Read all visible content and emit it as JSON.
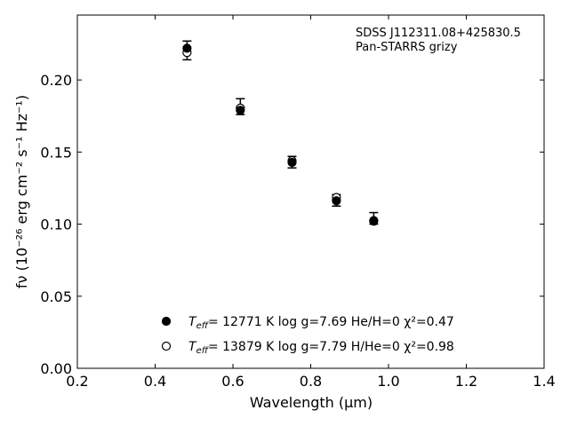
{
  "chart_data": {
    "type": "scatter",
    "title": "",
    "xlabel": "Wavelength (μm)",
    "ylabel": "fν (10⁻²⁶ erg cm⁻² s⁻¹ Hz⁻¹)",
    "xlim": [
      0.2,
      1.4
    ],
    "ylim": [
      0.0,
      0.245
    ],
    "xticks": [
      "0.2",
      "0.4",
      "0.6",
      "0.8",
      "1.0",
      "1.2",
      "1.4"
    ],
    "yticks": [
      "0.00",
      "0.05",
      "0.10",
      "0.15",
      "0.20"
    ],
    "grid": false,
    "annotation": [
      "SDSS J112311.08+425830.5",
      "Pan-STARRS grizy"
    ],
    "observed": {
      "x": [
        0.482,
        0.619,
        0.752,
        0.866,
        0.962
      ],
      "y": [
        0.2205,
        0.1815,
        0.143,
        0.1165,
        0.104
      ],
      "yerr_low": [
        0.0065,
        0.0055,
        0.004,
        0.004,
        0.004
      ],
      "yerr_high": [
        0.0065,
        0.0055,
        0.004,
        0.004,
        0.004
      ]
    },
    "series": [
      {
        "marker": "filled-circle",
        "legend_teff": "12771 K",
        "legend_rest": "  log g=7.69  He/H=0  χ²=0.47",
        "x": [
          0.482,
          0.619,
          0.752,
          0.866,
          0.962
        ],
        "y": [
          0.222,
          0.179,
          0.1428,
          0.1162,
          0.102
        ]
      },
      {
        "marker": "open-circle",
        "legend_teff": "13879 K",
        "legend_rest": "  log g=7.79  H/He=0  χ²=0.98",
        "x": [
          0.482,
          0.619,
          0.752,
          0.866,
          0.962
        ],
        "y": [
          0.219,
          0.1805,
          0.144,
          0.1185,
          0.1025
        ]
      }
    ]
  }
}
